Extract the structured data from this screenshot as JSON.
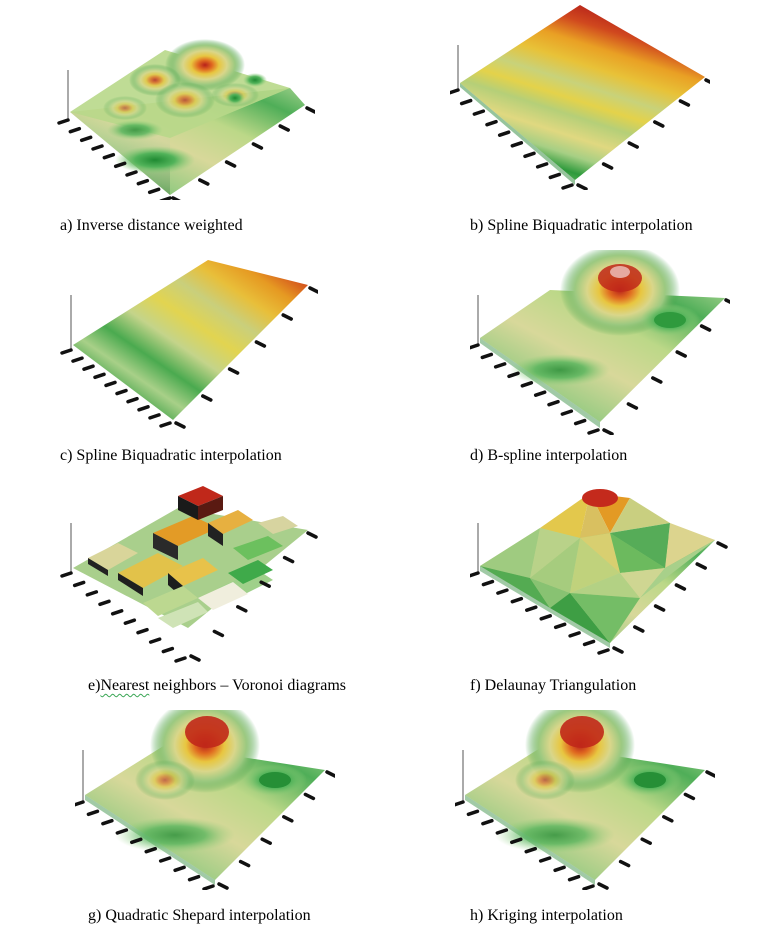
{
  "panels": [
    {
      "id": "a",
      "caption": "a) Inverse distance weighted",
      "surface": "idw"
    },
    {
      "id": "b",
      "caption": "b) Spline Biquadratic interpolation",
      "surface": "biquad-b"
    },
    {
      "id": "c",
      "caption": "c) Spline Biquadratic interpolation",
      "surface": "biquad-c"
    },
    {
      "id": "d",
      "caption": "d) B-spline interpolation",
      "surface": "bspline"
    },
    {
      "id": "e",
      "caption_prefix": "e)",
      "caption_underlined": "Nearest",
      "caption_rest": " neighbors – Voronoi diagrams",
      "surface": "voronoi"
    },
    {
      "id": "f",
      "caption": "f) Delaunay Triangulation",
      "surface": "delaunay"
    },
    {
      "id": "g",
      "caption": "g) Quadratic Shepard interpolation",
      "surface": "shepard"
    },
    {
      "id": "h",
      "caption": "h) Kriging interpolation",
      "surface": "kriging"
    }
  ],
  "colors": {
    "low": "#2e9e3e",
    "mid_low": "#a9d08e",
    "mid": "#e6d44a",
    "mid_high": "#e8a020",
    "high": "#c0281a",
    "axis_ticks": "#111111"
  }
}
